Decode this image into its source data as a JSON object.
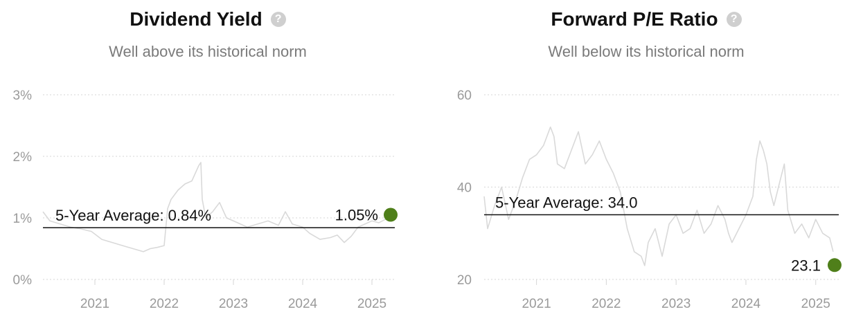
{
  "chart_data": [
    {
      "type": "line",
      "title": "Dividend Yield",
      "subtitle": "Well above its historical norm",
      "help_icon": "question-circle-icon",
      "ylim": [
        0,
        3
      ],
      "yticks": [
        0,
        1,
        2,
        3
      ],
      "yticklabels": [
        "0%",
        "1%",
        "2%",
        "3%"
      ],
      "xlim": [
        2020.25,
        2025.33
      ],
      "xticks": [
        2021,
        2022,
        2023,
        2024,
        2025
      ],
      "xticklabels": [
        "2021",
        "2022",
        "2023",
        "2024",
        "2025"
      ],
      "grid": true,
      "average": {
        "label": "5-Year Average: 0.84%",
        "value": 0.84
      },
      "current": {
        "label": "1.05%",
        "value": 1.05,
        "x": 2025.27
      },
      "series": [
        {
          "x": [
            2020.25,
            2020.35,
            2020.5,
            2020.65,
            2020.8,
            2020.95,
            2021.1,
            2021.25,
            2021.4,
            2021.55,
            2021.7,
            2021.8,
            2021.9,
            2022.0,
            2022.05,
            2022.1,
            2022.2,
            2022.3,
            2022.4,
            2022.5,
            2022.53,
            2022.55,
            2022.6,
            2022.7,
            2022.8,
            2022.9,
            2023.0,
            2023.1,
            2023.2,
            2023.35,
            2023.5,
            2023.65,
            2023.75,
            2023.85,
            2024.0,
            2024.1,
            2024.25,
            2024.4,
            2024.5,
            2024.6,
            2024.7,
            2024.8,
            2024.9,
            2025.0,
            2025.1,
            2025.2
          ],
          "values": [
            1.1,
            0.95,
            0.9,
            0.85,
            0.82,
            0.78,
            0.65,
            0.6,
            0.55,
            0.5,
            0.45,
            0.5,
            0.52,
            0.55,
            1.15,
            1.3,
            1.45,
            1.55,
            1.6,
            1.85,
            1.9,
            1.3,
            1.0,
            1.1,
            1.25,
            1.0,
            0.95,
            0.9,
            0.85,
            0.9,
            0.95,
            0.88,
            1.1,
            0.9,
            0.85,
            0.75,
            0.65,
            0.68,
            0.72,
            0.6,
            0.7,
            0.85,
            0.9,
            0.95,
            0.92,
            0.98
          ]
        }
      ]
    },
    {
      "type": "line",
      "title": "Forward P/E Ratio",
      "subtitle": "Well below its historical norm",
      "help_icon": "question-circle-icon",
      "ylim": [
        20,
        60
      ],
      "yticks": [
        20,
        40,
        60
      ],
      "yticklabels": [
        "20",
        "40",
        "60"
      ],
      "xlim": [
        2020.25,
        2025.33
      ],
      "xticks": [
        2021,
        2022,
        2023,
        2024,
        2025
      ],
      "xticklabels": [
        "2021",
        "2022",
        "2023",
        "2024",
        "2025"
      ],
      "grid": true,
      "average": {
        "label": "5-Year Average: 34.0",
        "value": 34.0
      },
      "current": {
        "label": "23.1",
        "value": 23.1,
        "x": 2025.27
      },
      "series": [
        {
          "x": [
            2020.25,
            2020.3,
            2020.4,
            2020.5,
            2020.6,
            2020.7,
            2020.8,
            2020.9,
            2021.0,
            2021.1,
            2021.2,
            2021.25,
            2021.3,
            2021.4,
            2021.5,
            2021.6,
            2021.7,
            2021.8,
            2021.9,
            2022.0,
            2022.1,
            2022.2,
            2022.3,
            2022.4,
            2022.5,
            2022.55,
            2022.6,
            2022.7,
            2022.8,
            2022.9,
            2023.0,
            2023.1,
            2023.2,
            2023.3,
            2023.4,
            2023.5,
            2023.6,
            2023.7,
            2023.75,
            2023.8,
            2023.9,
            2024.0,
            2024.1,
            2024.15,
            2024.2,
            2024.25,
            2024.3,
            2024.35,
            2024.4,
            2024.5,
            2024.55,
            2024.6,
            2024.7,
            2024.8,
            2024.9,
            2025.0,
            2025.1,
            2025.2,
            2025.25
          ],
          "values": [
            38,
            31,
            36,
            40,
            33,
            37,
            42,
            46,
            47,
            49,
            53,
            51,
            45,
            44,
            48,
            52,
            45,
            47,
            50,
            46,
            43,
            39,
            31,
            26,
            25,
            23,
            28,
            31,
            25,
            32,
            34,
            30,
            31,
            35,
            30,
            32,
            36,
            33,
            30,
            28,
            31,
            34,
            38,
            46,
            50,
            48,
            45,
            39,
            36,
            42,
            45,
            35,
            30,
            32,
            29,
            33,
            30,
            29,
            26
          ]
        }
      ]
    }
  ],
  "colors": {
    "series_line": "#d9d9d9",
    "grid": "#d6d6d6",
    "average_line": "#111111",
    "current_marker": "#4f7f1a",
    "tick_text": "#9a9a9a"
  }
}
